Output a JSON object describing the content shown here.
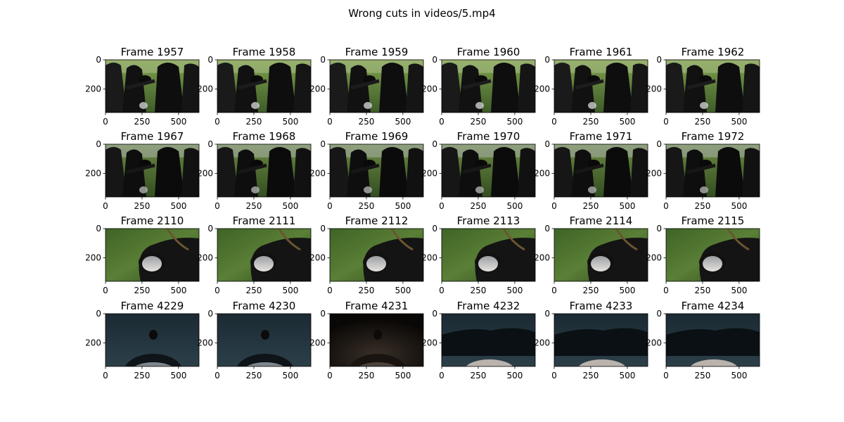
{
  "figure": {
    "title": "Wrong cuts in videos/5.mp4"
  },
  "chart_data": {
    "type": "image-grid",
    "rows": 4,
    "cols": 6,
    "x_ticks": [
      0,
      250,
      500
    ],
    "y_ticks": [
      0,
      200
    ],
    "xlim": [
      0,
      640
    ],
    "ylim": [
      360,
      0
    ],
    "panels": [
      {
        "title": "Frame 1957",
        "scene": "field-group"
      },
      {
        "title": "Frame 1958",
        "scene": "field-group"
      },
      {
        "title": "Frame 1959",
        "scene": "field-group"
      },
      {
        "title": "Frame 1960",
        "scene": "field-group"
      },
      {
        "title": "Frame 1961",
        "scene": "field-group"
      },
      {
        "title": "Frame 1962",
        "scene": "field-group"
      },
      {
        "title": "Frame 1967",
        "scene": "field-group-dark"
      },
      {
        "title": "Frame 1968",
        "scene": "field-group-dark"
      },
      {
        "title": "Frame 1969",
        "scene": "field-group-dark"
      },
      {
        "title": "Frame 1970",
        "scene": "field-group-dark"
      },
      {
        "title": "Frame 1971",
        "scene": "field-group-dark"
      },
      {
        "title": "Frame 1972",
        "scene": "field-group-dark"
      },
      {
        "title": "Frame 2110",
        "scene": "face-on-grass"
      },
      {
        "title": "Frame 2111",
        "scene": "face-on-grass"
      },
      {
        "title": "Frame 2112",
        "scene": "face-on-grass"
      },
      {
        "title": "Frame 2113",
        "scene": "face-on-grass"
      },
      {
        "title": "Frame 2114",
        "scene": "face-on-grass"
      },
      {
        "title": "Frame 2115",
        "scene": "face-on-grass"
      },
      {
        "title": "Frame 4229",
        "scene": "head-top-light"
      },
      {
        "title": "Frame 4230",
        "scene": "head-top-light"
      },
      {
        "title": "Frame 4231",
        "scene": "head-top-dark"
      },
      {
        "title": "Frame 4232",
        "scene": "head-top-cloth"
      },
      {
        "title": "Frame 4233",
        "scene": "head-top-cloth"
      },
      {
        "title": "Frame 4234",
        "scene": "head-top-cloth"
      }
    ]
  }
}
